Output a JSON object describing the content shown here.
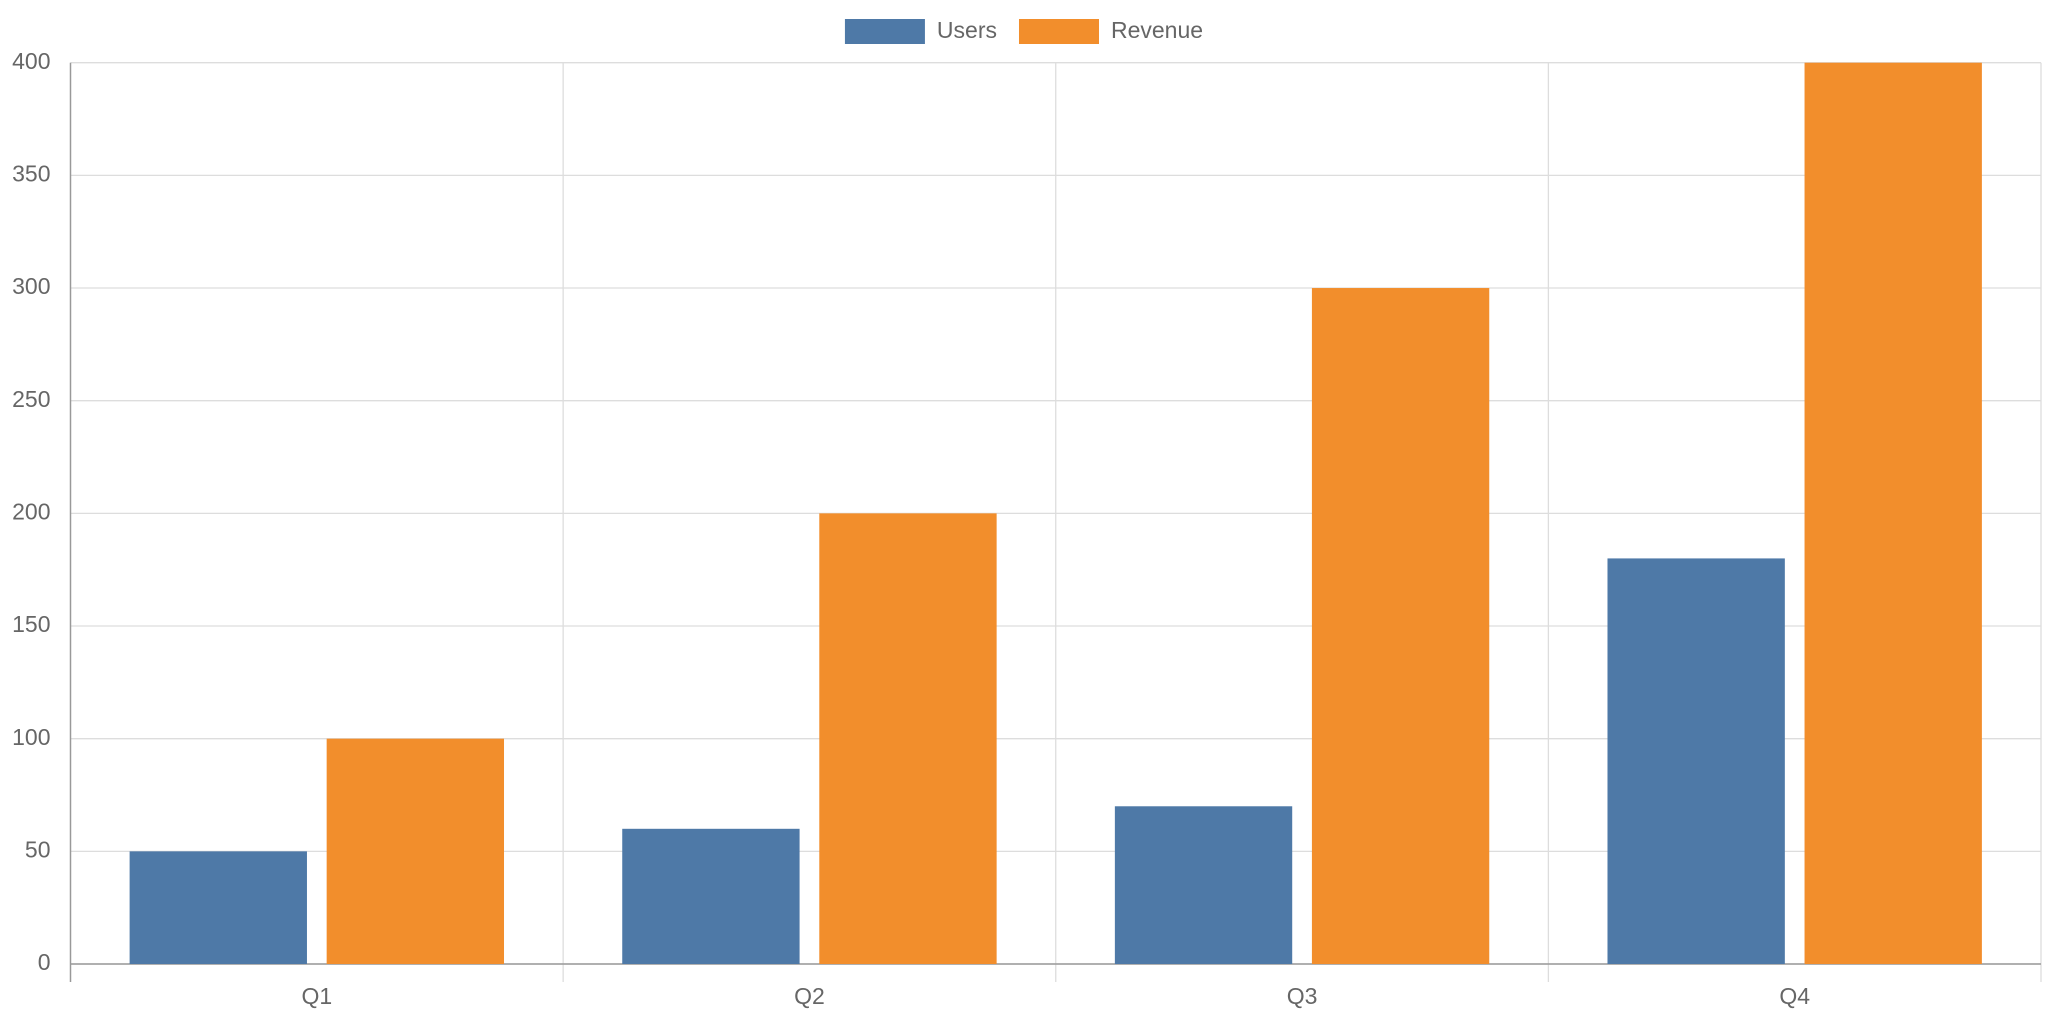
{
  "chart_data": {
    "type": "bar",
    "categories": [
      "Q1",
      "Q2",
      "Q3",
      "Q4"
    ],
    "series": [
      {
        "name": "Users",
        "color": "#4e79a7",
        "values": [
          50,
          60,
          70,
          180
        ]
      },
      {
        "name": "Revenue",
        "color": "#f28e2c",
        "values": [
          100,
          200,
          300,
          400
        ]
      }
    ],
    "ylim": [
      0,
      400
    ],
    "yticks": [
      0,
      50,
      100,
      150,
      200,
      250,
      300,
      350,
      400
    ],
    "grid": true,
    "legend": "top"
  }
}
